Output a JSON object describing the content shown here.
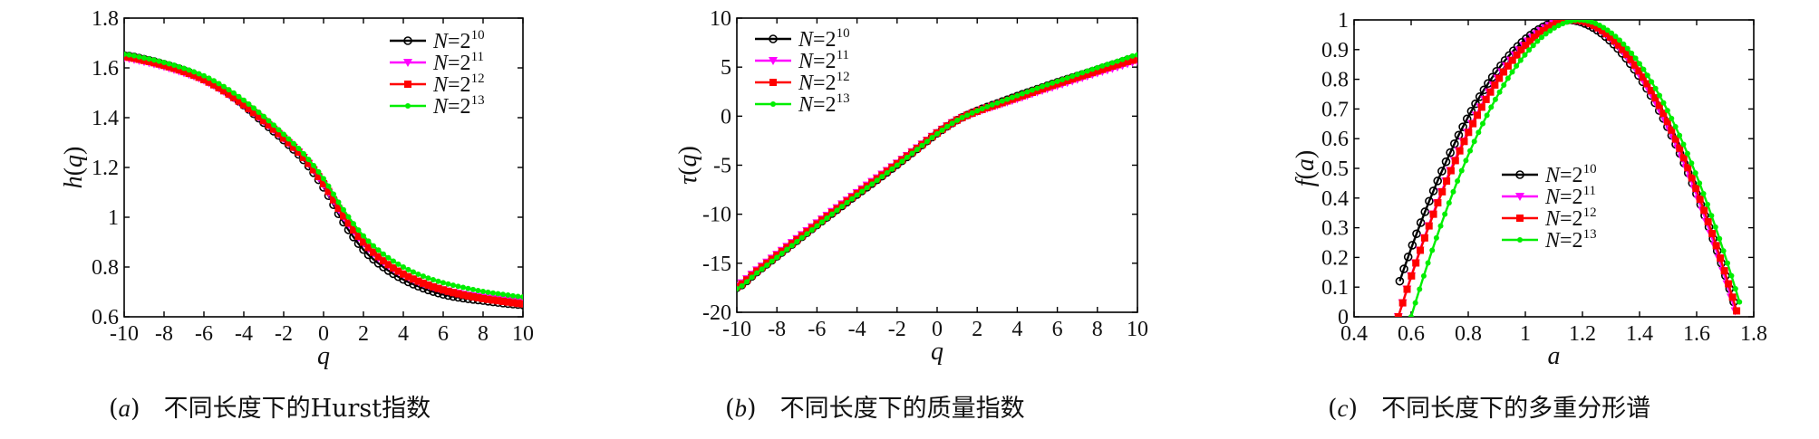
{
  "chart_data": [
    {
      "type": "line",
      "caption_tag": "a",
      "caption": "不同长度下的Hurst指数",
      "xlabel_base": "q",
      "ylabel_base": "h",
      "ylabel_arg": "q",
      "xlim": [
        -10,
        10
      ],
      "ylim": [
        0.6,
        1.8
      ],
      "xticks": [
        "-10",
        "-8",
        "-6",
        "-4",
        "-2",
        "0",
        "2",
        "4",
        "6",
        "8",
        "10"
      ],
      "yticks": [
        "0.6",
        "0.8",
        "1",
        "1.2",
        "1.4",
        "1.6",
        "1.8"
      ],
      "legend_position": "top-right",
      "x": [
        -10,
        -9,
        -8,
        -7,
        -6,
        -5,
        -4,
        -3,
        -2,
        -1,
        0,
        1,
        2,
        3,
        4,
        5,
        6,
        7,
        8,
        9,
        10
      ],
      "series": [
        {
          "legend_prefix": "N=2",
          "legend_exp": "10",
          "marker": "circle",
          "color": "#000000",
          "values": [
            1.65,
            1.635,
            1.615,
            1.59,
            1.555,
            1.51,
            1.45,
            1.38,
            1.31,
            1.23,
            1.12,
            0.98,
            0.87,
            0.8,
            0.75,
            0.715,
            0.69,
            0.675,
            0.665,
            0.655,
            0.648
          ]
        },
        {
          "legend_prefix": "N=2",
          "legend_exp": "11",
          "marker": "triangle-down",
          "color": "#ff00ff",
          "values": [
            1.64,
            1.625,
            1.605,
            1.58,
            1.55,
            1.505,
            1.45,
            1.385,
            1.315,
            1.24,
            1.13,
            1.0,
            0.895,
            0.82,
            0.77,
            0.733,
            0.708,
            0.69,
            0.678,
            0.668,
            0.66
          ]
        },
        {
          "legend_prefix": "N=2",
          "legend_exp": "12",
          "marker": "square",
          "color": "#ff0000",
          "values": [
            1.645,
            1.63,
            1.61,
            1.585,
            1.553,
            1.508,
            1.452,
            1.388,
            1.318,
            1.24,
            1.135,
            1.005,
            0.9,
            0.825,
            0.772,
            0.735,
            0.708,
            0.688,
            0.673,
            0.662,
            0.652
          ]
        },
        {
          "legend_prefix": "N=2",
          "legend_exp": "13",
          "marker": "dot",
          "color": "#00ee00",
          "values": [
            1.655,
            1.64,
            1.622,
            1.598,
            1.568,
            1.525,
            1.47,
            1.405,
            1.333,
            1.255,
            1.155,
            1.03,
            0.925,
            0.852,
            0.8,
            0.763,
            0.737,
            0.718,
            0.702,
            0.69,
            0.68
          ]
        }
      ]
    },
    {
      "type": "line",
      "caption_tag": "b",
      "caption": "不同长度下的质量指数",
      "xlabel_base": "q",
      "ylabel_base": "τ",
      "ylabel_arg": "q",
      "xlim": [
        -10,
        10
      ],
      "ylim": [
        -20,
        10
      ],
      "xticks": [
        "-10",
        "-8",
        "-6",
        "-4",
        "-2",
        "0",
        "2",
        "4",
        "6",
        "8",
        "10"
      ],
      "yticks": [
        "-20",
        "-15",
        "-10",
        "-5",
        "0",
        "5",
        "10"
      ],
      "legend_position": "top-left",
      "x": [
        -10,
        -9,
        -8,
        -7,
        -6,
        -5,
        -4,
        -3,
        -2,
        -1,
        0,
        1,
        2,
        3,
        4,
        5,
        6,
        7,
        8,
        9,
        10
      ],
      "series": [
        {
          "legend_prefix": "N=2",
          "legend_exp": "10",
          "marker": "circle",
          "color": "#000000",
          "values": [
            -17.5,
            -15.9,
            -14.3,
            -12.7,
            -11.1,
            -9.55,
            -8.0,
            -6.5,
            -4.95,
            -3.35,
            -1.75,
            -0.4,
            0.55,
            1.3,
            2.05,
            2.75,
            3.45,
            4.1,
            4.75,
            5.4,
            6.0
          ]
        },
        {
          "legend_prefix": "N=2",
          "legend_exp": "11",
          "marker": "triangle-down",
          "color": "#ff00ff",
          "values": [
            -17.3,
            -15.7,
            -14.1,
            -12.5,
            -10.9,
            -9.35,
            -7.8,
            -6.3,
            -4.8,
            -3.25,
            -1.7,
            -0.4,
            0.45,
            1.1,
            1.75,
            2.45,
            3.1,
            3.75,
            4.4,
            5.0,
            5.6
          ]
        },
        {
          "legend_prefix": "N=2",
          "legend_exp": "12",
          "marker": "square",
          "color": "#ff0000",
          "values": [
            -17.4,
            -15.8,
            -14.2,
            -12.6,
            -11.0,
            -9.45,
            -7.9,
            -6.4,
            -4.85,
            -3.3,
            -1.72,
            -0.4,
            0.5,
            1.2,
            1.9,
            2.6,
            3.3,
            3.95,
            4.6,
            5.25,
            5.8
          ]
        },
        {
          "legend_prefix": "N=2",
          "legend_exp": "13",
          "marker": "dot",
          "color": "#00ee00",
          "values": [
            -17.6,
            -16.0,
            -14.4,
            -12.8,
            -11.2,
            -9.6,
            -8.05,
            -6.55,
            -5.0,
            -3.4,
            -1.8,
            -0.42,
            0.55,
            1.35,
            2.1,
            2.85,
            3.55,
            4.25,
            4.95,
            5.6,
            6.25
          ]
        }
      ]
    },
    {
      "type": "line",
      "caption_tag": "c",
      "caption": "不同长度下的多重分形谱",
      "xlabel_base": "a",
      "ylabel_base": "f",
      "ylabel_arg": "a",
      "xlim": [
        0.4,
        1.8
      ],
      "ylim": [
        0,
        1
      ],
      "xticks": [
        "0.4",
        "0.6",
        "0.8",
        "1",
        "1.2",
        "1.4",
        "1.6",
        "1.8"
      ],
      "yticks": [
        "0",
        "0.1",
        "0.2",
        "0.3",
        "0.4",
        "0.5",
        "0.6",
        "0.7",
        "0.8",
        "0.9",
        "1"
      ],
      "legend_position": "center",
      "series": [
        {
          "legend_prefix": "N=2",
          "legend_exp": "10",
          "marker": "circle",
          "color": "#000000",
          "alpha_min": 0.56,
          "alpha_peak": 1.15,
          "alpha_max": 1.73,
          "f_left": 0.12,
          "f_right": 0.05
        },
        {
          "legend_prefix": "N=2",
          "legend_exp": "11",
          "marker": "triangle-down",
          "color": "#ff00ff",
          "alpha_min": 0.555,
          "alpha_peak": 1.16,
          "alpha_max": 1.735,
          "f_left": 0.0,
          "f_right": 0.02
        },
        {
          "legend_prefix": "N=2",
          "legend_exp": "12",
          "marker": "square",
          "color": "#ff0000",
          "alpha_min": 0.555,
          "alpha_peak": 1.17,
          "alpha_max": 1.74,
          "f_left": 0.0,
          "f_right": 0.02
        },
        {
          "legend_prefix": "N=2",
          "legend_exp": "13",
          "marker": "dot",
          "color": "#00ee00",
          "alpha_min": 0.6,
          "alpha_peak": 1.19,
          "alpha_max": 1.75,
          "f_left": 0.0,
          "f_right": 0.05
        }
      ]
    }
  ]
}
